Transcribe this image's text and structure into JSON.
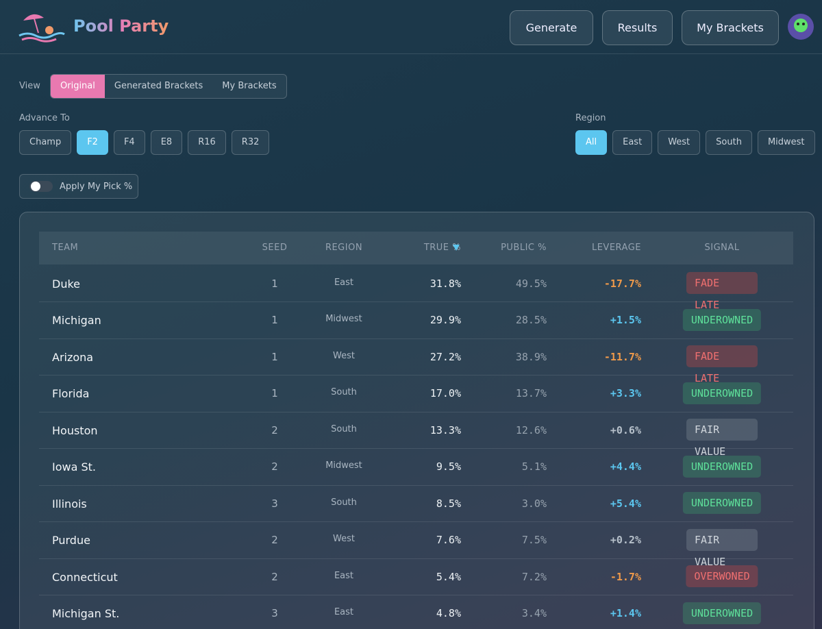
{
  "header": {
    "brand": "Pool Party",
    "nav": [
      "Generate",
      "Results",
      "My Brackets"
    ]
  },
  "view": {
    "label": "View",
    "options": [
      "Original",
      "Generated Brackets",
      "My Brackets"
    ]
  },
  "advance": {
    "label": "Advance To",
    "options": [
      "Champ",
      "F2",
      "F4",
      "E8",
      "R16",
      "R32"
    ]
  },
  "region": {
    "label": "Region",
    "options": [
      "All",
      "East",
      "West",
      "South",
      "Midwest"
    ]
  },
  "toggle": {
    "label": "Apply My Pick %"
  },
  "table": {
    "columns": [
      "TEAM",
      "SEED",
      "REGION",
      "TRUE %",
      "PUBLIC %",
      "LEVERAGE",
      "SIGNAL"
    ],
    "rows": [
      [
        "Duke",
        "1",
        "East",
        "31.8%",
        "49.5%",
        "-17.7%",
        "FADE LATE"
      ],
      [
        "Michigan",
        "1",
        "Midwest",
        "29.9%",
        "28.5%",
        "+1.5%",
        "UNDEROWNED"
      ],
      [
        "Arizona",
        "1",
        "West",
        "27.2%",
        "38.9%",
        "-11.7%",
        "FADE LATE"
      ],
      [
        "Florida",
        "1",
        "South",
        "17.0%",
        "13.7%",
        "+3.3%",
        "UNDEROWNED"
      ],
      [
        "Houston",
        "2",
        "South",
        "13.3%",
        "12.6%",
        "+0.6%",
        "FAIR VALUE"
      ],
      [
        "Iowa St.",
        "2",
        "Midwest",
        "9.5%",
        "5.1%",
        "+4.4%",
        "UNDEROWNED"
      ],
      [
        "Illinois",
        "3",
        "South",
        "8.5%",
        "3.0%",
        "+5.4%",
        "UNDEROWNED"
      ],
      [
        "Purdue",
        "2",
        "West",
        "7.6%",
        "7.5%",
        "+0.2%",
        "FAIR VALUE"
      ],
      [
        "Connecticut",
        "2",
        "East",
        "5.4%",
        "7.2%",
        "-1.7%",
        "OVERWONED"
      ],
      [
        "Michigan St.",
        "3",
        "East",
        "4.8%",
        "3.4%",
        "+1.4%",
        "UNDEROWNED"
      ]
    ]
  }
}
